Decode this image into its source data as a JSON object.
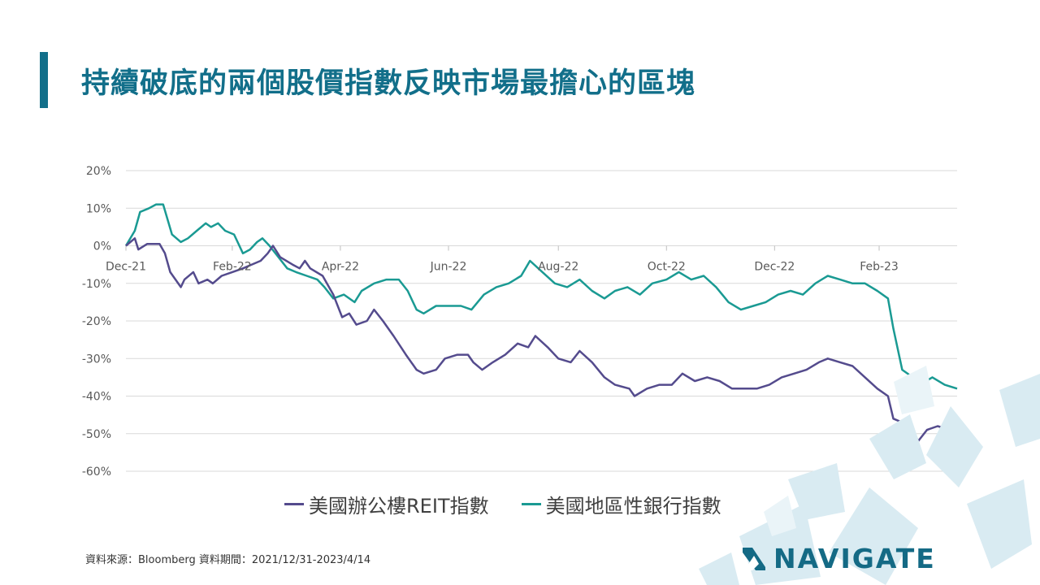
{
  "slide": {
    "title": "持續破底的兩個股價指數反映市場最擔心的區塊",
    "accent_color": "#126f8a",
    "title_color": "#126f8a",
    "source": "資料來源：Bloomberg 資料期間：2021/12/31-2023/4/14",
    "logo_text": "NAVIGATE",
    "logo_color": "#146a85"
  },
  "chart_data": {
    "type": "line",
    "title": "",
    "xlabel": "",
    "ylabel": "",
    "x_tick_labels": [
      "Dec-21",
      "Feb-22",
      "Apr-22",
      "Jun-22",
      "Aug-22",
      "Oct-22",
      "Dec-22",
      "Feb-23"
    ],
    "y_tick_labels": [
      "20%",
      "10%",
      "0%",
      "-10%",
      "-20%",
      "-30%",
      "-40%",
      "-50%",
      "-60%"
    ],
    "ylim": [
      -60,
      20
    ],
    "grid": true,
    "legend_position": "bottom",
    "series": [
      {
        "name": "美國辦公樓REIT指數",
        "color": "#544b8d",
        "points": [
          [
            "2021-12-31",
            0
          ],
          [
            "2022-01-05",
            2
          ],
          [
            "2022-01-07",
            -1
          ],
          [
            "2022-01-12",
            0.5
          ],
          [
            "2022-01-19",
            0.5
          ],
          [
            "2022-01-22",
            -2
          ],
          [
            "2022-01-25",
            -7
          ],
          [
            "2022-01-31",
            -11
          ],
          [
            "2022-02-02",
            -9
          ],
          [
            "2022-02-07",
            -7
          ],
          [
            "2022-02-10",
            -10
          ],
          [
            "2022-02-15",
            -9
          ],
          [
            "2022-02-18",
            -10
          ],
          [
            "2022-02-23",
            -8
          ],
          [
            "2022-03-01",
            -7
          ],
          [
            "2022-03-07",
            -6
          ],
          [
            "2022-03-12",
            -5
          ],
          [
            "2022-03-17",
            -4
          ],
          [
            "2022-03-21",
            -2
          ],
          [
            "2022-03-24",
            0
          ],
          [
            "2022-03-28",
            -3
          ],
          [
            "2022-04-04",
            -5
          ],
          [
            "2022-04-08",
            -6
          ],
          [
            "2022-04-11",
            -4
          ],
          [
            "2022-04-14",
            -6
          ],
          [
            "2022-04-21",
            -8
          ],
          [
            "2022-04-27",
            -13
          ],
          [
            "2022-05-02",
            -19
          ],
          [
            "2022-05-06",
            -18
          ],
          [
            "2022-05-10",
            -21
          ],
          [
            "2022-05-16",
            -20
          ],
          [
            "2022-05-20",
            -17
          ],
          [
            "2022-05-25",
            -20
          ],
          [
            "2022-05-31",
            -24
          ],
          [
            "2022-06-07",
            -29
          ],
          [
            "2022-06-13",
            -33
          ],
          [
            "2022-06-17",
            -34
          ],
          [
            "2022-06-24",
            -33
          ],
          [
            "2022-06-29",
            -30
          ],
          [
            "2022-07-06",
            -29
          ],
          [
            "2022-07-12",
            -29
          ],
          [
            "2022-07-15",
            -31
          ],
          [
            "2022-07-20",
            -33
          ],
          [
            "2022-07-26",
            -31
          ],
          [
            "2022-08-02",
            -29
          ],
          [
            "2022-08-09",
            -26
          ],
          [
            "2022-08-15",
            -27
          ],
          [
            "2022-08-19",
            -24
          ],
          [
            "2022-08-26",
            -27
          ],
          [
            "2022-09-01",
            -30
          ],
          [
            "2022-09-08",
            -31
          ],
          [
            "2022-09-13",
            -28
          ],
          [
            "2022-09-20",
            -31
          ],
          [
            "2022-09-27",
            -35
          ],
          [
            "2022-10-03",
            -37
          ],
          [
            "2022-10-11",
            -38
          ],
          [
            "2022-10-14",
            -40
          ],
          [
            "2022-10-21",
            -38
          ],
          [
            "2022-10-28",
            -37
          ],
          [
            "2022-11-04",
            -37
          ],
          [
            "2022-11-10",
            -34
          ],
          [
            "2022-11-17",
            -36
          ],
          [
            "2022-11-24",
            -35
          ],
          [
            "2022-12-01",
            -36
          ],
          [
            "2022-12-08",
            -38
          ],
          [
            "2022-12-15",
            -38
          ],
          [
            "2022-12-22",
            -38
          ],
          [
            "2022-12-29",
            -37
          ],
          [
            "2023-01-05",
            -35
          ],
          [
            "2023-01-12",
            -34
          ],
          [
            "2023-01-19",
            -33
          ],
          [
            "2023-01-26",
            -31
          ],
          [
            "2023-01-31",
            -30
          ],
          [
            "2023-02-07",
            -31
          ],
          [
            "2023-02-14",
            -32
          ],
          [
            "2023-02-21",
            -35
          ],
          [
            "2023-02-28",
            -38
          ],
          [
            "2023-03-06",
            -40
          ],
          [
            "2023-03-09",
            -46
          ],
          [
            "2023-03-14",
            -47
          ],
          [
            "2023-03-20",
            -49
          ],
          [
            "2023-03-23",
            -52
          ],
          [
            "2023-03-28",
            -49
          ],
          [
            "2023-04-03",
            -48
          ],
          [
            "2023-04-10",
            -49
          ],
          [
            "2023-04-14",
            -51
          ]
        ]
      },
      {
        "name": "美國地區性銀行指數",
        "color": "#1a9a93",
        "points": [
          [
            "2021-12-31",
            0
          ],
          [
            "2022-01-05",
            4
          ],
          [
            "2022-01-08",
            9
          ],
          [
            "2022-01-13",
            10
          ],
          [
            "2022-01-17",
            11
          ],
          [
            "2022-01-21",
            11
          ],
          [
            "2022-01-26",
            3
          ],
          [
            "2022-01-31",
            1
          ],
          [
            "2022-02-04",
            2
          ],
          [
            "2022-02-09",
            4
          ],
          [
            "2022-02-14",
            6
          ],
          [
            "2022-02-17",
            5
          ],
          [
            "2022-02-21",
            6
          ],
          [
            "2022-02-25",
            4
          ],
          [
            "2022-03-02",
            3
          ],
          [
            "2022-03-07",
            -2
          ],
          [
            "2022-03-11",
            -1
          ],
          [
            "2022-03-15",
            1
          ],
          [
            "2022-03-18",
            2
          ],
          [
            "2022-03-22",
            0
          ],
          [
            "2022-03-27",
            -3
          ],
          [
            "2022-04-01",
            -6
          ],
          [
            "2022-04-06",
            -7
          ],
          [
            "2022-04-12",
            -8
          ],
          [
            "2022-04-18",
            -9
          ],
          [
            "2022-04-22",
            -11
          ],
          [
            "2022-04-27",
            -14
          ],
          [
            "2022-05-03",
            -13
          ],
          [
            "2022-05-09",
            -15
          ],
          [
            "2022-05-13",
            -12
          ],
          [
            "2022-05-20",
            -10
          ],
          [
            "2022-05-27",
            -9
          ],
          [
            "2022-06-03",
            -9
          ],
          [
            "2022-06-08",
            -12
          ],
          [
            "2022-06-13",
            -17
          ],
          [
            "2022-06-17",
            -18
          ],
          [
            "2022-06-24",
            -16
          ],
          [
            "2022-07-01",
            -16
          ],
          [
            "2022-07-08",
            -16
          ],
          [
            "2022-07-14",
            -17
          ],
          [
            "2022-07-21",
            -13
          ],
          [
            "2022-07-28",
            -11
          ],
          [
            "2022-08-04",
            -10
          ],
          [
            "2022-08-11",
            -8
          ],
          [
            "2022-08-16",
            -4
          ],
          [
            "2022-08-23",
            -7
          ],
          [
            "2022-08-30",
            -10
          ],
          [
            "2022-09-06",
            -11
          ],
          [
            "2022-09-13",
            -9
          ],
          [
            "2022-09-20",
            -12
          ],
          [
            "2022-09-27",
            -14
          ],
          [
            "2022-10-03",
            -12
          ],
          [
            "2022-10-10",
            -11
          ],
          [
            "2022-10-17",
            -13
          ],
          [
            "2022-10-24",
            -10
          ],
          [
            "2022-11-01",
            -9
          ],
          [
            "2022-11-08",
            -7
          ],
          [
            "2022-11-15",
            -9
          ],
          [
            "2022-11-22",
            -8
          ],
          [
            "2022-11-29",
            -11
          ],
          [
            "2022-12-06",
            -15
          ],
          [
            "2022-12-13",
            -17
          ],
          [
            "2022-12-20",
            -16
          ],
          [
            "2022-12-27",
            -15
          ],
          [
            "2023-01-03",
            -13
          ],
          [
            "2023-01-10",
            -12
          ],
          [
            "2023-01-17",
            -13
          ],
          [
            "2023-01-24",
            -10
          ],
          [
            "2023-01-31",
            -8
          ],
          [
            "2023-02-07",
            -9
          ],
          [
            "2023-02-14",
            -10
          ],
          [
            "2023-02-21",
            -10
          ],
          [
            "2023-02-28",
            -12
          ],
          [
            "2023-03-06",
            -14
          ],
          [
            "2023-03-09",
            -22
          ],
          [
            "2023-03-14",
            -33
          ],
          [
            "2023-03-20",
            -35
          ],
          [
            "2023-03-24",
            -37
          ],
          [
            "2023-03-31",
            -35
          ],
          [
            "2023-04-07",
            -37
          ],
          [
            "2023-04-14",
            -38
          ]
        ]
      }
    ]
  }
}
